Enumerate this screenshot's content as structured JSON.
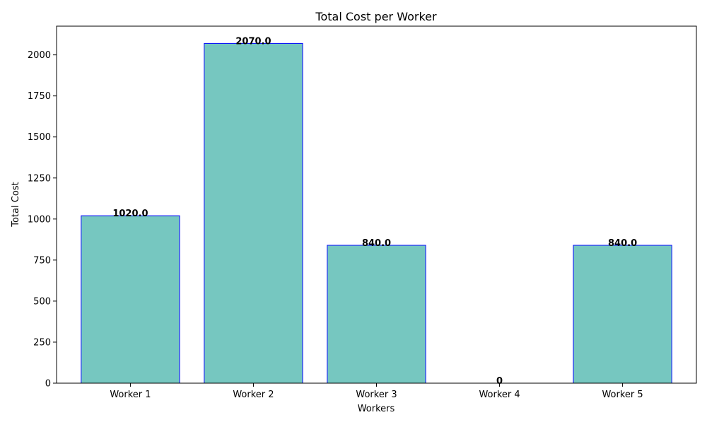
{
  "chart_data": {
    "type": "bar",
    "title": "Total Cost per Worker",
    "xlabel": "Workers",
    "ylabel": "Total Cost",
    "categories": [
      "Worker 1",
      "Worker 2",
      "Worker 3",
      "Worker 4",
      "Worker 5"
    ],
    "values": [
      1020.0,
      2070.0,
      840.0,
      0,
      840.0
    ],
    "data_labels": [
      "1020.0",
      "2070.0",
      "840.0",
      "0",
      "840.0"
    ],
    "ylim": [
      0,
      2175
    ],
    "yticks": [
      0,
      250,
      500,
      750,
      1000,
      1250,
      1500,
      1750,
      2000
    ],
    "grid": false,
    "legend": "none",
    "colors": {
      "bar_fill": "#76c7c0",
      "bar_edge": "#0000ff",
      "axis": "#000000",
      "text": "#000000"
    }
  }
}
